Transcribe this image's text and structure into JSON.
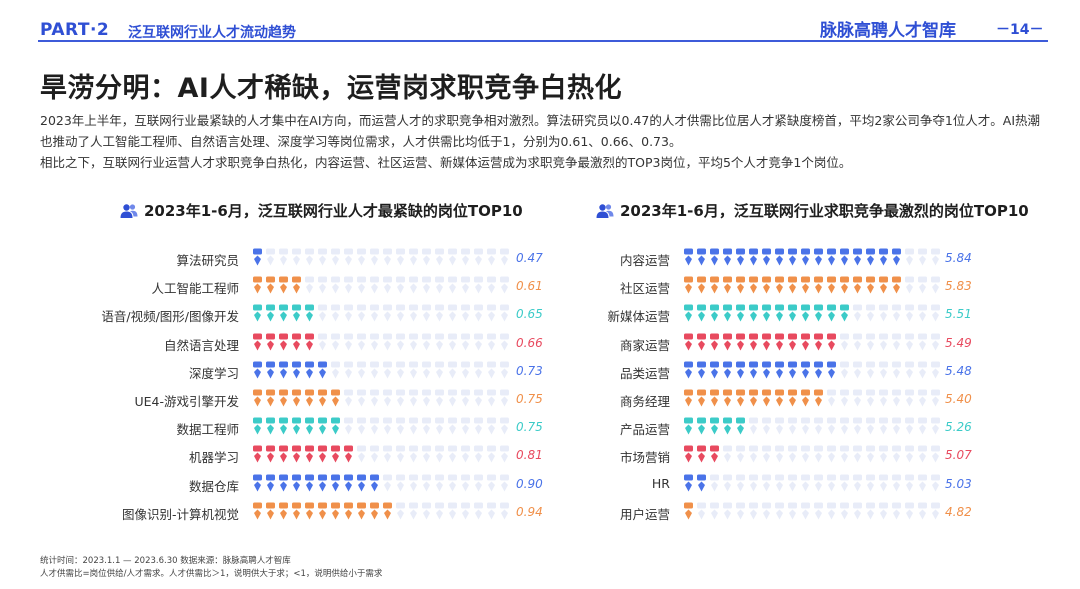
{
  "header": {
    "part": "PART·2",
    "section_title": "泛互联网行业人才流动趋势",
    "brand": "脉脉高聘人才智库",
    "page_number": "－14－"
  },
  "main": {
    "title": "旱涝分明：AI人才稀缺，运营岗求职竞争白热化",
    "paragraph1": "2023年上半年，互联网行业最紧缺的人才集中在AI方向，而运营人才的求职竞争相对激烈。算法研究员以0.47的人才供需比位居人才紧缺度榜首，平均2家公司争夺1位人才。AI热潮也推动了人工智能工程师、自然语言处理、深度学习等岗位需求，人才供需比均低于1，分别为0.61、0.66、0.73。",
    "paragraph2": "相比之下，互联网行业运营人才求职竞争白热化，内容运营、社区运营、新媒体运营成为求职竞争最激烈的TOP3岗位，平均5个人才竞争1个岗位。"
  },
  "colors": {
    "blue": "#4a73e8",
    "orange": "#f0904a",
    "teal": "#3ccbc8",
    "red": "#e84a5f",
    "empty": "#e8ecf8",
    "accent": "#2f4fd4"
  },
  "chart_data": [
    {
      "type": "table",
      "title": "2023年1-6月，泛互联网行业人才最紧缺的岗位TOP10",
      "icon": "people-icon",
      "total_icons": 20,
      "rows": [
        {
          "label": "算法研究员",
          "value": 0.47,
          "value_text": "0.47",
          "filled": 1,
          "color": "blue"
        },
        {
          "label": "人工智能工程师",
          "value": 0.61,
          "value_text": "0.61",
          "filled": 4,
          "color": "orange"
        },
        {
          "label": "语音/视频/图形/图像开发",
          "value": 0.65,
          "value_text": "0.65",
          "filled": 5,
          "color": "teal"
        },
        {
          "label": "自然语言处理",
          "value": 0.66,
          "value_text": "0.66",
          "filled": 5,
          "color": "red"
        },
        {
          "label": "深度学习",
          "value": 0.73,
          "value_text": "0.73",
          "filled": 6,
          "color": "blue"
        },
        {
          "label": "UE4-游戏引擎开发",
          "value": 0.75,
          "value_text": "0.75",
          "filled": 7,
          "color": "orange"
        },
        {
          "label": "数据工程师",
          "value": 0.75,
          "value_text": "0.75",
          "filled": 7,
          "color": "teal"
        },
        {
          "label": "机器学习",
          "value": 0.81,
          "value_text": "0.81",
          "filled": 8,
          "color": "red"
        },
        {
          "label": "数据仓库",
          "value": 0.9,
          "value_text": "0.90",
          "filled": 10,
          "color": "blue"
        },
        {
          "label": "图像识别-计算机视觉",
          "value": 0.94,
          "value_text": "0.94",
          "filled": 11,
          "color": "orange"
        }
      ]
    },
    {
      "type": "table",
      "title": "2023年1-6月，泛互联网行业求职竞争最激烈的岗位TOP10",
      "icon": "people-icon",
      "total_icons": 20,
      "rows": [
        {
          "label": "内容运营",
          "value": 5.84,
          "value_text": "5.84",
          "filled": 17,
          "color": "blue"
        },
        {
          "label": "社区运营",
          "value": 5.83,
          "value_text": "5.83",
          "filled": 17,
          "color": "orange"
        },
        {
          "label": "新媒体运营",
          "value": 5.51,
          "value_text": "5.51",
          "filled": 13,
          "color": "teal"
        },
        {
          "label": "商家运营",
          "value": 5.49,
          "value_text": "5.49",
          "filled": 12,
          "color": "red"
        },
        {
          "label": "品类运营",
          "value": 5.48,
          "value_text": "5.48",
          "filled": 12,
          "color": "blue"
        },
        {
          "label": "商务经理",
          "value": 5.4,
          "value_text": "5.40",
          "filled": 11,
          "color": "orange"
        },
        {
          "label": "产品运营",
          "value": 5.26,
          "value_text": "5.26",
          "filled": 5,
          "color": "teal"
        },
        {
          "label": "市场营销",
          "value": 5.07,
          "value_text": "5.07",
          "filled": 3,
          "color": "red"
        },
        {
          "label": "HR",
          "value": 5.03,
          "value_text": "5.03",
          "filled": 2,
          "color": "blue"
        },
        {
          "label": "用户运营",
          "value": 4.82,
          "value_text": "4.82",
          "filled": 1,
          "color": "orange"
        }
      ]
    }
  ],
  "footer": {
    "line1": "统计时间：2023.1.1 — 2023.6.30   数据来源：脉脉高聘人才智库",
    "line2": "人才供需比=岗位供给/人才需求。人才供需比＞1，说明供大于求；<1，说明供给小于需求"
  }
}
